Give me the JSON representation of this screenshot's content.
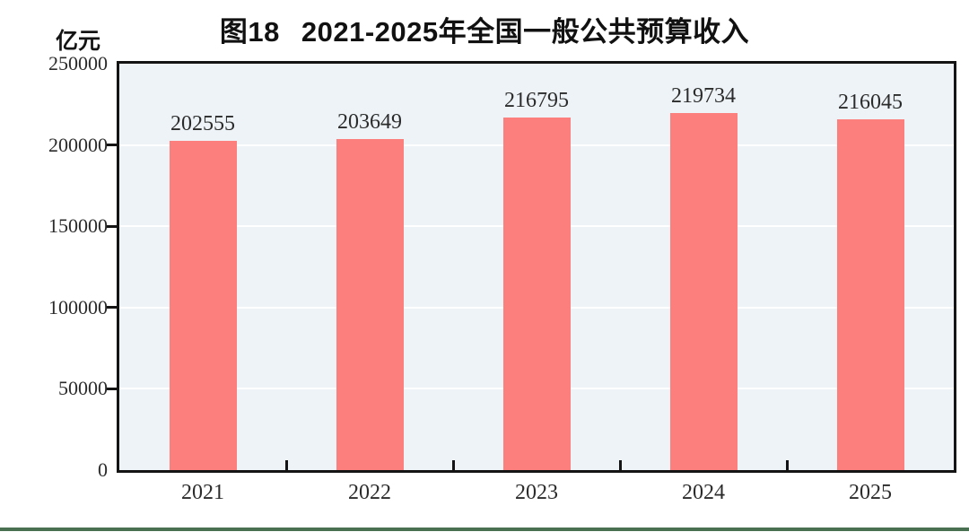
{
  "chart_data": {
    "type": "bar",
    "title_figure_label": "图18",
    "title": "2021-2025年全国一般公共预算收入",
    "unit_label": "亿元",
    "categories": [
      "2021",
      "2022",
      "2023",
      "2024",
      "2025"
    ],
    "values": [
      202555,
      203649,
      216795,
      219734,
      216045
    ],
    "value_labels": [
      "202555",
      "203649",
      "216795",
      "219734",
      "216045"
    ],
    "xlabel": "",
    "ylabel": "亿元",
    "ylim": [
      0,
      250000
    ],
    "yticks": [
      0,
      50000,
      100000,
      150000,
      200000,
      250000
    ],
    "ytick_labels": [
      "0",
      "50000",
      "100000",
      "150000",
      "200000",
      "250000"
    ],
    "grid": "horizontal",
    "legend_position": "none",
    "colors": {
      "bar": "#FC7F7E",
      "plot_background": "#EDF3F6",
      "gridline": "#FFFFFF",
      "axis": "#141414",
      "text": "#2B2B2B",
      "footer_bar": "#4A7052"
    }
  }
}
